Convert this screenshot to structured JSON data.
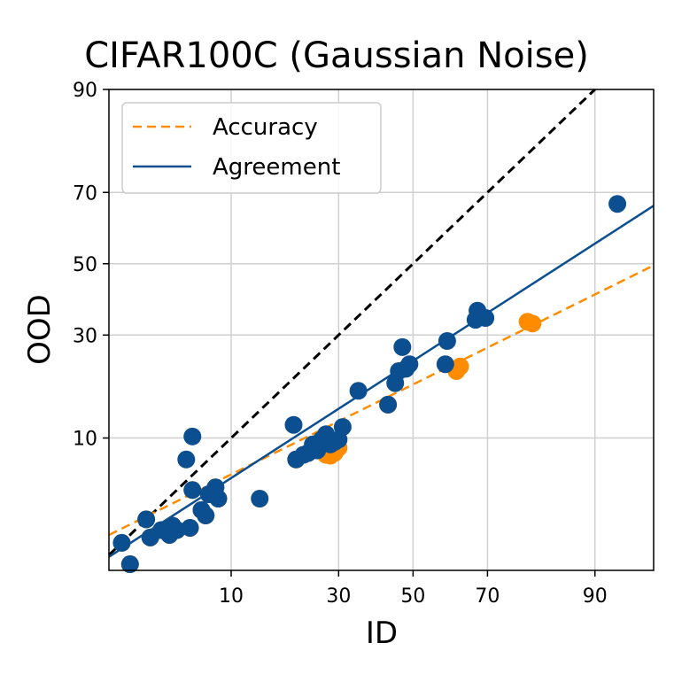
{
  "chart_data": {
    "type": "scatter",
    "title": "CIFAR100C (Gaussian Noise)",
    "xlabel": "ID",
    "ylabel": "OOD",
    "xscale": "probit-percent",
    "yscale": "probit-percent",
    "xlim": [
      1.6,
      95.5
    ],
    "ylim": [
      1.2,
      90
    ],
    "xticks": [
      10,
      30,
      50,
      70,
      90
    ],
    "yticks": [
      10,
      30,
      50,
      70,
      90
    ],
    "grid": true,
    "legend_position": "top-left",
    "series": [
      {
        "name": "Accuracy",
        "color": "#ff8c00",
        "line_style": "dashed",
        "fit_line": [
          [
            1.6,
            2.3
          ],
          [
            95.5,
            49.5
          ]
        ],
        "points": [
          [
            2.0,
            2.0
          ],
          [
            2.3,
            1.35
          ],
          [
            3.0,
            3.0
          ],
          [
            3.2,
            2.2
          ],
          [
            3.8,
            2.5
          ],
          [
            4.3,
            2.3
          ],
          [
            4.5,
            2.7
          ],
          [
            4.8,
            2.5
          ],
          [
            5.8,
            2.6
          ],
          [
            6.0,
            4.8
          ],
          [
            6.8,
            3.5
          ],
          [
            7.2,
            3.2
          ],
          [
            7.5,
            4.5
          ],
          [
            8.0,
            4.5
          ],
          [
            8.2,
            5.0
          ],
          [
            8.5,
            4.2
          ],
          [
            20.5,
            7.5
          ],
          [
            23.0,
            8.2
          ],
          [
            25.0,
            8.5
          ],
          [
            27.0,
            8.0
          ],
          [
            28.0,
            7.9
          ],
          [
            29.0,
            8.2
          ],
          [
            30.0,
            8.8
          ],
          [
            43.0,
            15.0
          ],
          [
            62.0,
            21.5
          ],
          [
            63.0,
            22.5
          ],
          [
            79.0,
            33.5
          ],
          [
            80.0,
            33.0
          ]
        ]
      },
      {
        "name": "Agreement",
        "color": "#0b4f91",
        "line_style": "solid",
        "fit_line": [
          [
            1.6,
            1.55
          ],
          [
            95.5,
            66.5
          ]
        ],
        "points": [
          [
            2.0,
            2.0
          ],
          [
            2.3,
            1.35
          ],
          [
            3.0,
            3.0
          ],
          [
            3.2,
            2.2
          ],
          [
            3.8,
            2.5
          ],
          [
            4.3,
            2.3
          ],
          [
            4.5,
            2.7
          ],
          [
            4.8,
            2.5
          ],
          [
            5.8,
            2.6
          ],
          [
            6.0,
            4.8
          ],
          [
            6.8,
            3.5
          ],
          [
            7.2,
            3.2
          ],
          [
            7.5,
            4.5
          ],
          [
            8.0,
            4.5
          ],
          [
            8.2,
            5.0
          ],
          [
            8.5,
            4.2
          ],
          [
            5.5,
            7.5
          ],
          [
            6.0,
            10.2
          ],
          [
            14.0,
            4.2
          ],
          [
            20.0,
            11.8
          ],
          [
            20.5,
            7.5
          ],
          [
            22.0,
            8.0
          ],
          [
            23.0,
            8.2
          ],
          [
            24.0,
            9.2
          ],
          [
            25.0,
            8.5
          ],
          [
            26.0,
            9.8
          ],
          [
            27.0,
            10.5
          ],
          [
            28.0,
            9.2
          ],
          [
            29.0,
            9.5
          ],
          [
            30.0,
            9.8
          ],
          [
            31.0,
            11.5
          ],
          [
            35.0,
            17.5
          ],
          [
            43.0,
            15.0
          ],
          [
            45.0,
            19.0
          ],
          [
            46.0,
            21.5
          ],
          [
            47.0,
            27.0
          ],
          [
            48.0,
            22.0
          ],
          [
            49.0,
            23.0
          ],
          [
            59.0,
            23.0
          ],
          [
            59.5,
            28.5
          ],
          [
            67.0,
            34.0
          ],
          [
            67.5,
            36.5
          ],
          [
            69.5,
            34.5
          ],
          [
            92.5,
            67.0
          ]
        ]
      }
    ]
  }
}
